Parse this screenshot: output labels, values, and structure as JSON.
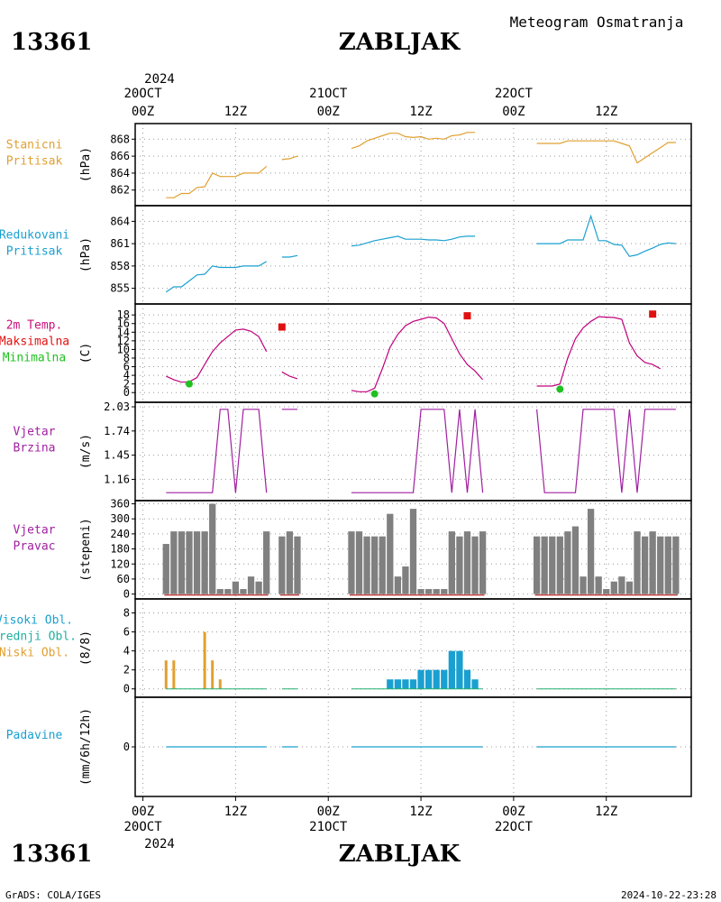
{
  "header": {
    "station_id": "13361",
    "station_name": "ZABLJAK",
    "subtitle": "Meteogram Osmatranja",
    "footer_left": "GrADS: COLA/IGES",
    "footer_right": "2024-10-22-23:28"
  },
  "top_axis": {
    "year": "2024",
    "day_labels": [
      {
        "t": 0,
        "day": "20OCT",
        "hour": "00Z"
      },
      {
        "t": 24,
        "day": "21OCT",
        "hour": "00Z"
      },
      {
        "t": 48,
        "day": "22OCT",
        "hour": "00Z"
      }
    ],
    "mid_labels": [
      {
        "t": 12,
        "hour": "12Z"
      },
      {
        "t": 36,
        "hour": "12Z"
      },
      {
        "t": 60,
        "hour": "12Z"
      }
    ]
  },
  "bottom_axis": {
    "year": "2024",
    "day_labels": [
      {
        "t": 0,
        "hour": "00Z",
        "day": "20OCT"
      },
      {
        "t": 24,
        "hour": "00Z",
        "day": "21OCT"
      },
      {
        "t": 48,
        "hour": "00Z",
        "day": "22OCT"
      }
    ],
    "mid_labels": [
      {
        "t": 12,
        "hour": "12Z"
      },
      {
        "t": 36,
        "hour": "12Z"
      },
      {
        "t": 60,
        "hour": "12Z"
      }
    ]
  },
  "chart_data": [
    {
      "type": "line",
      "id": "stanicni",
      "label_lines": [
        "Stanicni",
        "Pritisak"
      ],
      "label_colors": [
        "#e0a030",
        "#e0a030"
      ],
      "ylabel": "(hPa)",
      "color": "#e0a030",
      "ylim": [
        860.8,
        869.2
      ],
      "yticks": [
        862,
        864,
        866,
        868
      ],
      "segments": [
        [
          [
            3,
            861.1
          ],
          [
            4,
            861.1
          ],
          [
            5,
            861.6
          ],
          [
            6,
            861.6
          ],
          [
            7,
            862.3
          ],
          [
            8,
            862.4
          ],
          [
            9,
            864.0
          ],
          [
            10,
            863.6
          ],
          [
            11,
            863.6
          ],
          [
            12,
            863.6
          ],
          [
            13,
            864.0
          ],
          [
            14,
            864.0
          ],
          [
            15,
            864.0
          ],
          [
            16,
            864.8
          ]
        ],
        [
          [
            18,
            865.6
          ],
          [
            19,
            865.7
          ],
          [
            20,
            866.0
          ]
        ],
        [
          [
            27,
            866.9
          ],
          [
            28,
            867.2
          ],
          [
            29,
            867.8
          ],
          [
            30,
            868.1
          ],
          [
            31,
            868.4
          ],
          [
            32,
            868.7
          ],
          [
            33,
            868.7
          ],
          [
            34,
            868.3
          ],
          [
            35,
            868.2
          ],
          [
            36,
            868.3
          ],
          [
            37,
            868.0
          ],
          [
            38,
            868.1
          ],
          [
            39,
            868.0
          ],
          [
            40,
            868.4
          ],
          [
            41,
            868.5
          ],
          [
            42,
            868.8
          ],
          [
            43,
            868.8
          ]
        ],
        [
          [
            51,
            867.5
          ],
          [
            52,
            867.5
          ],
          [
            53,
            867.5
          ],
          [
            54,
            867.5
          ],
          [
            55,
            867.8
          ],
          [
            56,
            867.8
          ],
          [
            57,
            867.8
          ],
          [
            58,
            867.8
          ],
          [
            59,
            867.8
          ],
          [
            60,
            867.8
          ],
          [
            61,
            867.8
          ],
          [
            62,
            867.5
          ],
          [
            63,
            867.2
          ],
          [
            64,
            865.2
          ],
          [
            65,
            865.8
          ],
          [
            66,
            866.4
          ],
          [
            67,
            867.0
          ],
          [
            68,
            867.6
          ],
          [
            69,
            867.6
          ]
        ]
      ]
    },
    {
      "type": "line",
      "id": "redukovani",
      "label_lines": [
        "Redukovani",
        "Pritisak"
      ],
      "label_colors": [
        "#1aa0d0",
        "#1aa0d0"
      ],
      "ylabel": "(hPa)",
      "color": "#1aa0d0",
      "ylim": [
        853.5,
        865.5
      ],
      "yticks": [
        855,
        858,
        861,
        864
      ],
      "segments": [
        [
          [
            3,
            854.5
          ],
          [
            4,
            855.2
          ],
          [
            5,
            855.2
          ],
          [
            6,
            856.0
          ],
          [
            7,
            856.8
          ],
          [
            8,
            856.9
          ],
          [
            9,
            858.0
          ],
          [
            10,
            857.8
          ],
          [
            11,
            857.8
          ],
          [
            12,
            857.8
          ],
          [
            13,
            858.0
          ],
          [
            14,
            858.0
          ],
          [
            15,
            858.0
          ],
          [
            16,
            858.6
          ]
        ],
        [
          [
            18,
            859.2
          ],
          [
            19,
            859.2
          ],
          [
            20,
            859.4
          ]
        ],
        [
          [
            27,
            860.7
          ],
          [
            28,
            860.8
          ],
          [
            29,
            861.1
          ],
          [
            30,
            861.4
          ],
          [
            31,
            861.6
          ],
          [
            32,
            861.8
          ],
          [
            33,
            862.0
          ],
          [
            34,
            861.6
          ],
          [
            35,
            861.6
          ],
          [
            36,
            861.6
          ],
          [
            37,
            861.5
          ],
          [
            38,
            861.5
          ],
          [
            39,
            861.4
          ],
          [
            40,
            861.6
          ],
          [
            41,
            861.9
          ],
          [
            42,
            862.0
          ],
          [
            43,
            862.0
          ]
        ],
        [
          [
            51,
            861.0
          ],
          [
            52,
            861.0
          ],
          [
            53,
            861.0
          ],
          [
            54,
            861.0
          ],
          [
            55,
            861.5
          ],
          [
            56,
            861.5
          ],
          [
            57,
            861.5
          ],
          [
            58,
            864.7
          ],
          [
            59,
            861.4
          ],
          [
            60,
            861.4
          ],
          [
            61,
            860.9
          ],
          [
            62,
            860.8
          ],
          [
            63,
            859.3
          ],
          [
            64,
            859.5
          ],
          [
            65,
            860.0
          ],
          [
            66,
            860.4
          ],
          [
            67,
            860.9
          ],
          [
            68,
            861.1
          ],
          [
            69,
            861.0
          ]
        ]
      ]
    },
    {
      "type": "line",
      "id": "temp",
      "label_lines": [
        "2m Temp.",
        "Maksimalna",
        "Minimalna"
      ],
      "label_colors": [
        "#c8107a",
        "#e01010",
        "#20c020"
      ],
      "ylabel": "(C)",
      "color": "#c0007c",
      "ylim": [
        -1,
        19.5
      ],
      "yticks": [
        0,
        2,
        4,
        6,
        8,
        10,
        12,
        14,
        16,
        18
      ],
      "segments": [
        [
          [
            3,
            3.8
          ],
          [
            4,
            3.0
          ],
          [
            5,
            2.4
          ],
          [
            6,
            2.5
          ],
          [
            7,
            3.5
          ],
          [
            8,
            6.5
          ],
          [
            9,
            9.5
          ],
          [
            10,
            11.5
          ],
          [
            11,
            13.0
          ],
          [
            12,
            14.5
          ],
          [
            13,
            14.7
          ],
          [
            14,
            14.2
          ],
          [
            15,
            13.0
          ],
          [
            16,
            9.5
          ]
        ],
        [
          [
            18,
            4.8
          ],
          [
            19,
            3.8
          ],
          [
            20,
            3.2
          ]
        ],
        [
          [
            27,
            0.5
          ],
          [
            28,
            0.2
          ],
          [
            29,
            0.2
          ],
          [
            30,
            1.0
          ],
          [
            31,
            5.5
          ],
          [
            32,
            10.5
          ],
          [
            33,
            13.5
          ],
          [
            34,
            15.5
          ],
          [
            35,
            16.5
          ],
          [
            36,
            17.0
          ],
          [
            37,
            17.5
          ],
          [
            38,
            17.3
          ],
          [
            39,
            16.0
          ],
          [
            40,
            12.5
          ],
          [
            41,
            9.0
          ],
          [
            42,
            6.5
          ],
          [
            43,
            5.0
          ],
          [
            44,
            3.0
          ]
        ],
        [
          [
            51,
            1.5
          ],
          [
            52,
            1.5
          ],
          [
            53,
            1.5
          ],
          [
            54,
            2.0
          ],
          [
            55,
            8.0
          ],
          [
            56,
            12.5
          ],
          [
            57,
            15.0
          ],
          [
            58,
            16.5
          ],
          [
            59,
            17.6
          ],
          [
            60,
            17.5
          ],
          [
            61,
            17.4
          ],
          [
            62,
            17.0
          ],
          [
            63,
            11.5
          ],
          [
            64,
            8.5
          ],
          [
            65,
            7.0
          ],
          [
            66,
            6.5
          ],
          [
            67,
            5.5
          ]
        ]
      ],
      "max_points": [
        [
          18,
          15.2
        ],
        [
          42,
          17.8
        ],
        [
          66,
          18.2
        ]
      ],
      "min_points": [
        [
          6,
          2.0
        ],
        [
          30,
          -0.3
        ],
        [
          54,
          0.8
        ]
      ],
      "max_color": "#e01010",
      "min_color": "#20c020"
    },
    {
      "type": "line",
      "id": "brzina",
      "label_lines": [
        "Vjetar",
        "Brzina"
      ],
      "label_colors": [
        "#a020a0",
        "#a020a0"
      ],
      "ylabel": "(m/s)",
      "color": "#a020a0",
      "ylim": [
        0.97,
        2.03
      ],
      "yticks": [
        1.16,
        1.45,
        1.74,
        2.03
      ],
      "ytick_labels": [
        "1.16",
        "1.45",
        "1.74",
        "2.03"
      ],
      "segments": [
        [
          [
            3,
            1.0
          ],
          [
            9,
            1.0
          ],
          [
            10,
            2.0
          ],
          [
            11,
            2.0
          ],
          [
            12,
            1.0
          ],
          [
            13,
            2.0
          ],
          [
            14,
            2.0
          ],
          [
            15,
            2.0
          ],
          [
            16,
            1.0
          ]
        ],
        [
          [
            18,
            2.0
          ],
          [
            20,
            2.0
          ]
        ],
        [
          [
            27,
            1.0
          ],
          [
            35,
            1.0
          ],
          [
            36,
            2.0
          ],
          [
            39,
            2.0
          ],
          [
            40,
            1.0
          ],
          [
            41,
            2.0
          ],
          [
            42,
            1.0
          ],
          [
            43,
            2.0
          ],
          [
            44,
            1.0
          ]
        ],
        [
          [
            51,
            2.0
          ],
          [
            52,
            1.0
          ],
          [
            56,
            1.0
          ],
          [
            57,
            2.0
          ],
          [
            61,
            2.0
          ],
          [
            62,
            1.0
          ],
          [
            63,
            2.0
          ],
          [
            64,
            1.0
          ],
          [
            65,
            2.0
          ],
          [
            69,
            2.0
          ]
        ]
      ]
    },
    {
      "type": "bar",
      "id": "pravac",
      "label_lines": [
        "Vjetar",
        "Pravac"
      ],
      "label_colors": [
        "#a020a0",
        "#a020a0"
      ],
      "ylabel": "(stepeni)",
      "color": "#808080",
      "baseline_color": "#c04040",
      "ylim": [
        -5,
        362
      ],
      "yticks": [
        0,
        60,
        120,
        180,
        240,
        300,
        360
      ],
      "x": [
        3,
        4,
        5,
        6,
        7,
        8,
        9,
        10,
        11,
        12,
        13,
        14,
        15,
        16,
        18,
        19,
        20,
        27,
        28,
        29,
        30,
        31,
        32,
        33,
        34,
        35,
        36,
        37,
        38,
        39,
        40,
        41,
        42,
        43,
        44,
        51,
        52,
        53,
        54,
        55,
        56,
        57,
        58,
        59,
        60,
        61,
        62,
        63,
        64,
        65,
        66,
        67,
        68,
        69
      ],
      "values": [
        200,
        250,
        250,
        250,
        250,
        250,
        360,
        20,
        20,
        50,
        20,
        70,
        50,
        250,
        230,
        250,
        230,
        250,
        250,
        230,
        230,
        230,
        320,
        70,
        110,
        340,
        20,
        20,
        20,
        20,
        250,
        230,
        250,
        230,
        250,
        230,
        230,
        230,
        230,
        250,
        270,
        70,
        340,
        70,
        20,
        50,
        70,
        50,
        250,
        230,
        250,
        230,
        230,
        230
      ]
    },
    {
      "type": "bar",
      "id": "oblaci",
      "label_lines": [
        "Visoki Obl.",
        "Srednji Obl.",
        "Niski Obl."
      ],
      "label_colors": [
        "#1aa0d0",
        "#20b0a0",
        "#e0a030"
      ],
      "ylabel": "(8/8)",
      "ylim": [
        -0.5,
        9
      ],
      "yticks": [
        0,
        2,
        4,
        6,
        8
      ],
      "series": [
        {
          "color": "#e0a030",
          "x": [
            3,
            4,
            8,
            9,
            10
          ],
          "values": [
            3,
            3,
            6,
            3,
            1
          ]
        },
        {
          "color": "#1aa0d0",
          "x": [
            32,
            33,
            34,
            35,
            36,
            37,
            38,
            39,
            40,
            41,
            42,
            43
          ],
          "values": [
            1,
            1,
            1,
            1,
            2,
            2,
            2,
            2,
            4,
            4,
            2,
            1
          ]
        }
      ],
      "baseline_color": "#20b070",
      "baseline_segments": [
        [
          3,
          16
        ],
        [
          18,
          20
        ],
        [
          27,
          44
        ],
        [
          51,
          69
        ]
      ]
    },
    {
      "type": "line",
      "id": "padavine",
      "label_lines": [
        "Padavine"
      ],
      "label_colors": [
        "#1aa0d0"
      ],
      "ylabel": "(mm/6h/12h)",
      "color": "#1aa0d0",
      "ylim": [
        -5,
        5
      ],
      "yticks": [
        0
      ],
      "segments": [
        [
          [
            3,
            0
          ],
          [
            16,
            0
          ]
        ],
        [
          [
            18,
            0
          ],
          [
            20,
            0
          ]
        ],
        [
          [
            27,
            0
          ],
          [
            44,
            0
          ]
        ],
        [
          [
            51,
            0
          ],
          [
            69,
            0
          ]
        ]
      ]
    }
  ]
}
